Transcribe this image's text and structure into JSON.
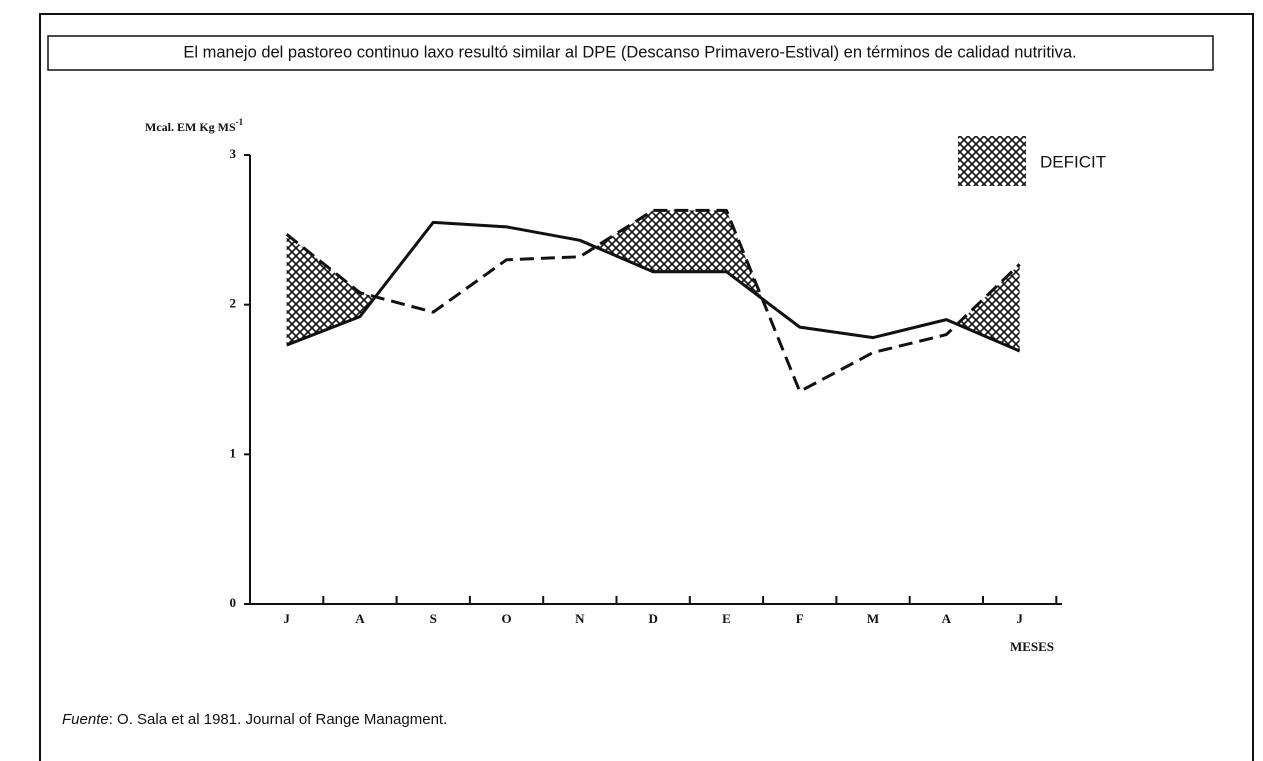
{
  "chart_data": {
    "type": "line",
    "title": "El manejo del pastoreo continuo laxo resultó similar al DPE  (Descanso Primavero-Estival) en términos de calidad nutritiva.",
    "y_label": "Mcal. EM Kg MS",
    "y_label_sup": "-1",
    "x_label": "MESES",
    "categories": [
      "J",
      "A",
      "S",
      "O",
      "N",
      "D",
      "E",
      "F",
      "M",
      "A",
      "J"
    ],
    "series": [
      {
        "color": "#111111",
        "style": "solid",
        "values": [
          1.73,
          1.92,
          2.55,
          2.52,
          2.43,
          2.22,
          2.22,
          1.85,
          1.78,
          1.9,
          1.69
        ]
      },
      {
        "color": "#111111",
        "style": "dashed",
        "values": [
          2.47,
          2.08,
          1.95,
          2.3,
          2.32,
          2.63,
          2.63,
          1.42,
          1.68,
          1.8,
          2.27
        ]
      }
    ],
    "deficit_label": "DEFICIT",
    "ylim": [
      0,
      3
    ],
    "yticks": [
      0,
      1,
      2,
      3
    ],
    "source_label": "Fuente",
    "source_text": ":  O. Sala et al 1981. Journal of Range Managment."
  }
}
